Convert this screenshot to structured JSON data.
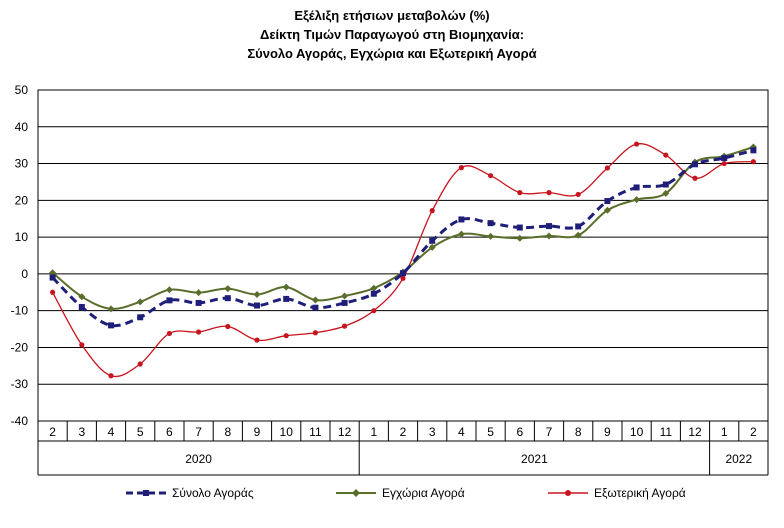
{
  "chart_data": {
    "type": "line",
    "title_lines": [
      "Εξέλιξη ετήσιων μεταβολών (%)",
      "Δείκτη Τιμών Παραγωγού στη Βιομηχανία:",
      "Σύνολο Αγοράς, Εγχώρια και Εξωτερική Αγορά"
    ],
    "categories": [
      "2",
      "3",
      "4",
      "5",
      "6",
      "7",
      "8",
      "9",
      "10",
      "11",
      "12",
      "1",
      "2",
      "3",
      "4",
      "5",
      "6",
      "7",
      "8",
      "9",
      "10",
      "11",
      "12",
      "1",
      "2"
    ],
    "year_groups": [
      {
        "label": "2020",
        "start": 0,
        "end": 10
      },
      {
        "label": "2021",
        "start": 11,
        "end": 22
      },
      {
        "label": "2022",
        "start": 23,
        "end": 24
      }
    ],
    "ylim": [
      -40,
      50
    ],
    "yticks": [
      -40,
      -30,
      -20,
      -10,
      0,
      10,
      20,
      30,
      40,
      50
    ],
    "grid": true,
    "legend_position": "bottom",
    "series": [
      {
        "name": "Σύνολο Αγοράς",
        "color": "#1f1f7a",
        "style": "dashed",
        "marker": "square",
        "values": [
          -1,
          -9,
          -14,
          -11.8,
          -7.2,
          -7.9,
          -6.6,
          -8.6,
          -6.8,
          -9.2,
          -7.9,
          -5.4,
          0.2,
          9,
          14.8,
          13.8,
          12.6,
          13,
          12.9,
          19.8,
          23.5,
          24.3,
          29.8,
          31.5,
          33.6
        ]
      },
      {
        "name": "Εγχώρια Αγορά",
        "color": "#5a6e2c",
        "style": "solid",
        "marker": "diamond",
        "values": [
          0.3,
          -6.2,
          -9.5,
          -7.6,
          -4.3,
          -5.1,
          -4,
          -5.6,
          -3.6,
          -7.1,
          -6,
          -3.9,
          0.5,
          7.2,
          10.8,
          10.2,
          9.7,
          10.3,
          10.5,
          17.3,
          20.2,
          21.9,
          30.4,
          32,
          34.5
        ]
      },
      {
        "name": "Εξωτερική Αγορά",
        "color": "#c8141e",
        "style": "solid",
        "marker": "circle",
        "values": [
          -5,
          -19.3,
          -27.7,
          -24.5,
          -16.2,
          -15.8,
          -14.3,
          -18,
          -16.8,
          -16,
          -14.2,
          -10,
          -1.2,
          17.2,
          28.9,
          26.7,
          22.1,
          22.1,
          21.6,
          28.8,
          35.3,
          32.3,
          26,
          30,
          30.5
        ]
      }
    ]
  }
}
